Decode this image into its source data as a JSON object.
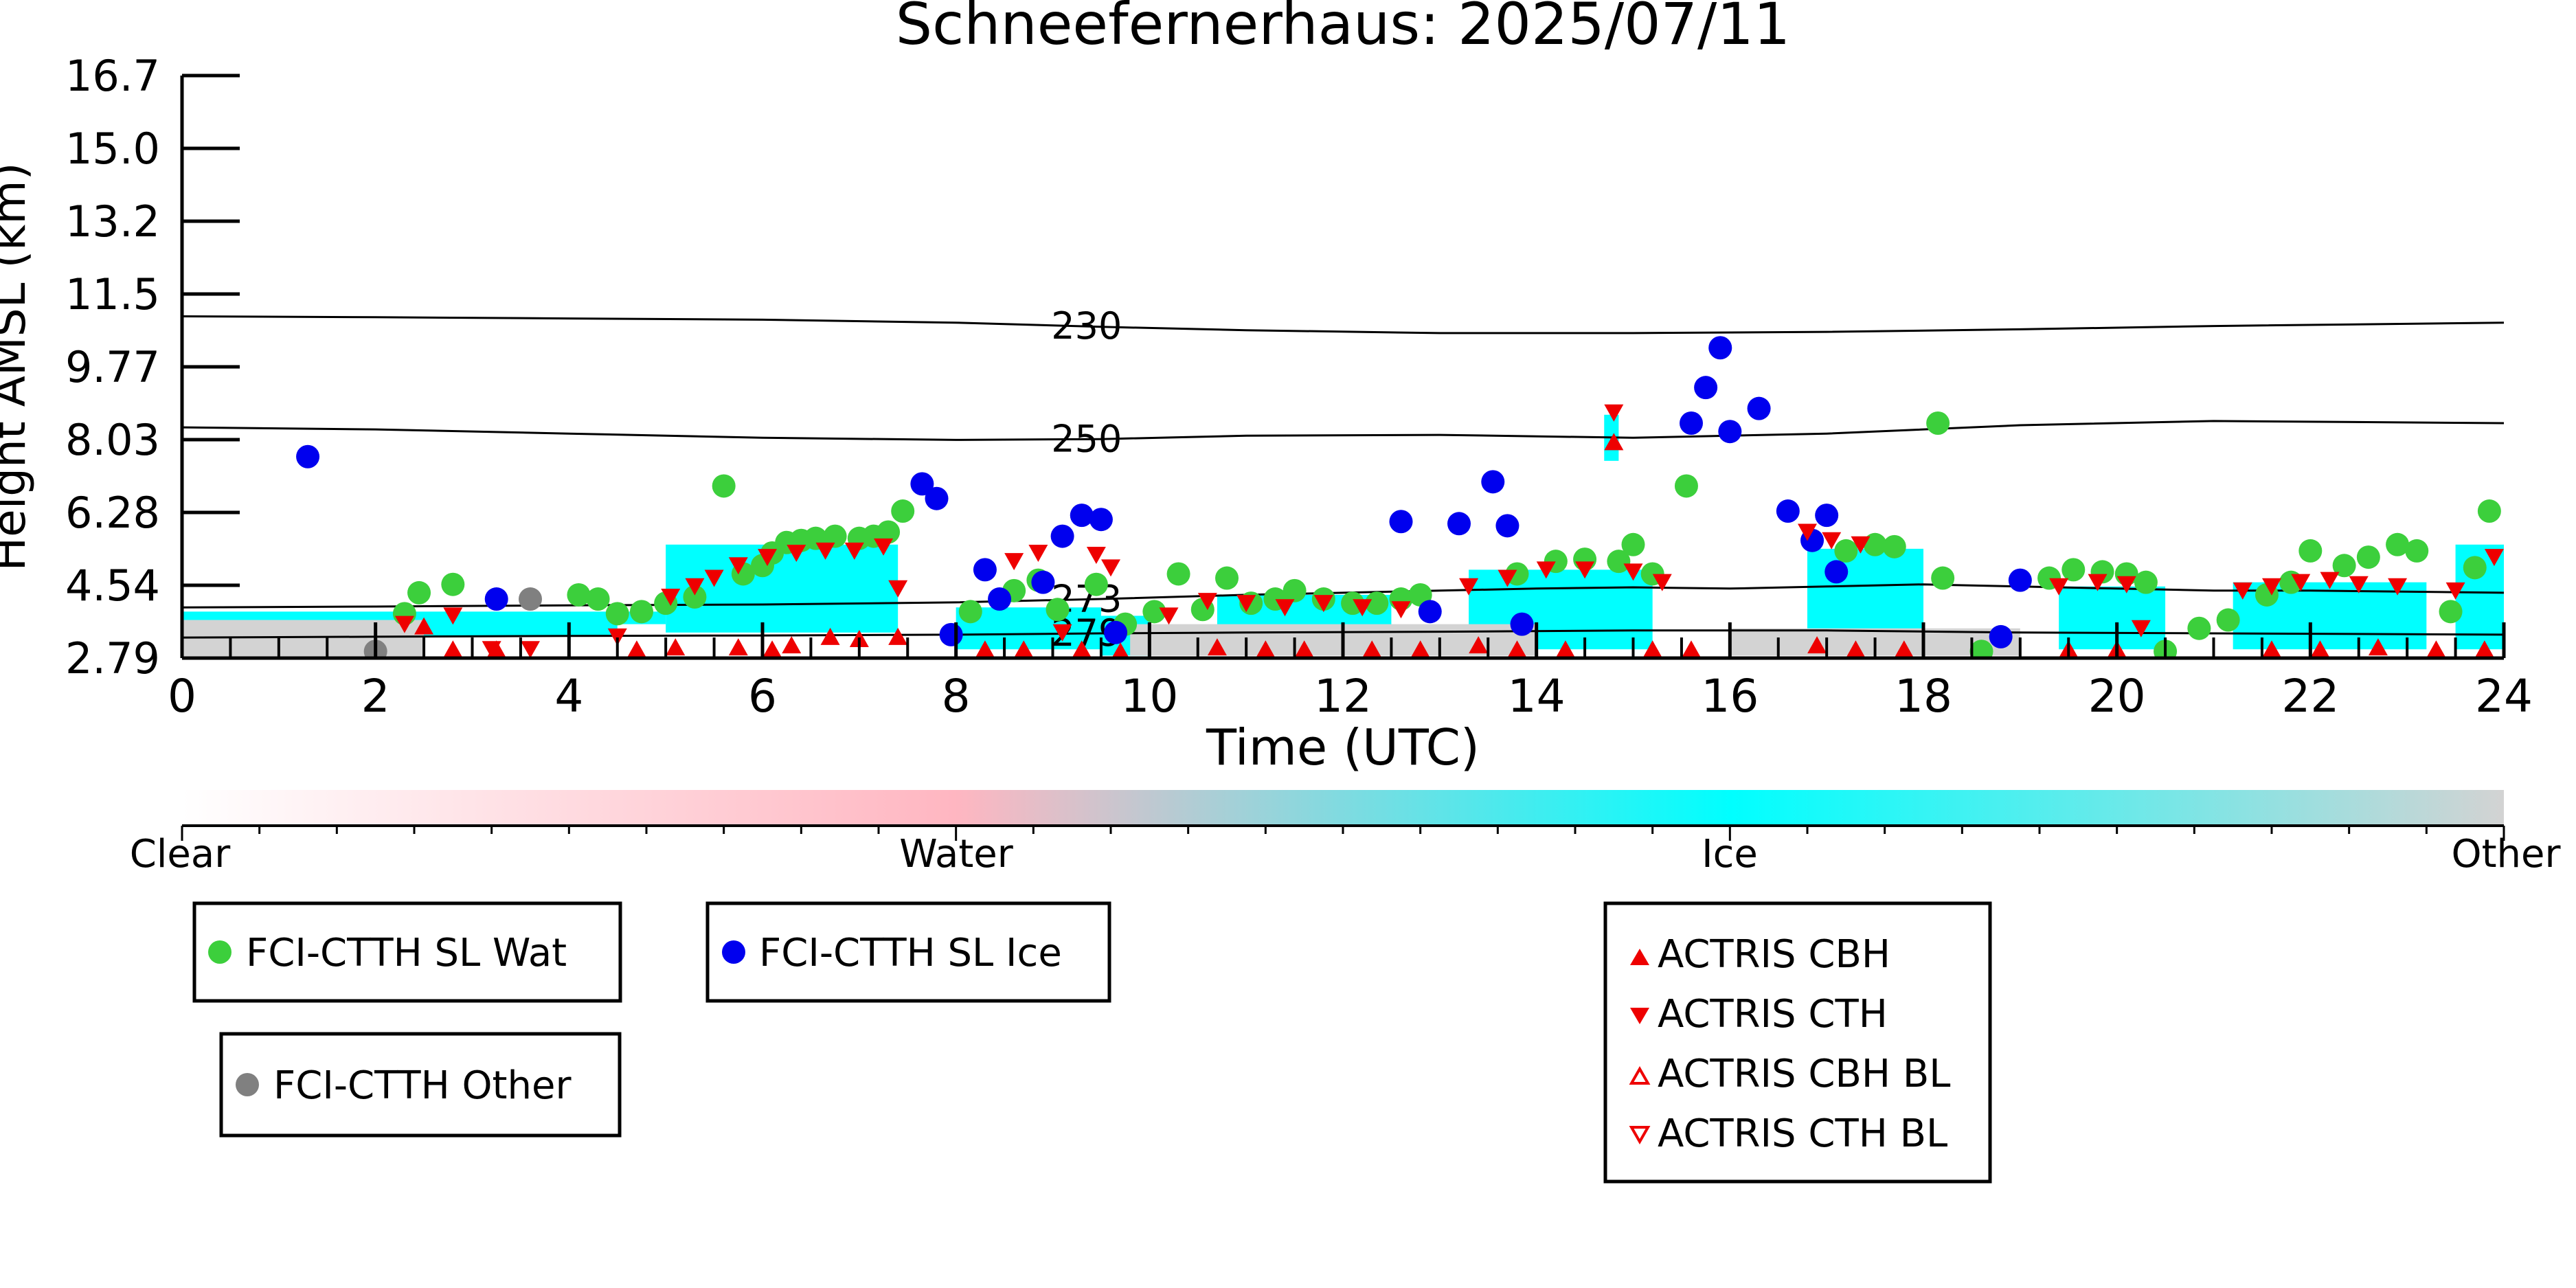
{
  "chart_data": {
    "type": "scatter",
    "title": "Schneefernerhaus: 2025/07/11",
    "xlabel": "Time (UTC)",
    "ylabel": "Height AMSL (km)",
    "xlim": [
      0,
      24
    ],
    "ylim": [
      2.79,
      16.7
    ],
    "x_ticks": [
      0,
      2,
      4,
      6,
      8,
      10,
      12,
      14,
      16,
      18,
      20,
      22,
      24
    ],
    "y_tick_labels": [
      "2.79",
      "4.54",
      "6.28",
      "8.03",
      "9.77",
      "11.5",
      "13.2",
      "15.0",
      "16.7"
    ],
    "colorbar": {
      "labels": [
        "Clear",
        "Water",
        "Ice",
        "Other"
      ],
      "colors": [
        "#ffffff",
        "#ffb6c1",
        "#00ffff",
        "#d3d3d3"
      ]
    },
    "contours": [
      {
        "label": "230",
        "x": [
          0,
          2,
          4,
          6,
          8,
          9.5,
          11,
          13,
          15,
          17,
          19,
          21,
          24
        ],
        "y": [
          10.95,
          10.93,
          10.9,
          10.87,
          10.8,
          10.7,
          10.62,
          10.55,
          10.55,
          10.58,
          10.64,
          10.72,
          10.8
        ]
      },
      {
        "label": "250",
        "x": [
          0,
          2,
          4,
          6,
          8,
          9.5,
          11,
          13,
          15,
          17,
          19,
          21,
          24
        ],
        "y": [
          8.3,
          8.25,
          8.15,
          8.05,
          8.0,
          8.02,
          8.1,
          8.12,
          8.05,
          8.15,
          8.35,
          8.45,
          8.4
        ]
      },
      {
        "label": "273",
        "x": [
          0,
          2,
          4,
          6,
          8,
          9.5,
          11,
          12,
          13,
          14,
          15,
          16,
          17,
          18,
          19,
          20,
          21,
          22,
          24
        ],
        "y": [
          4.0,
          4.02,
          4.05,
          4.07,
          4.12,
          4.2,
          4.3,
          4.35,
          4.4,
          4.45,
          4.48,
          4.45,
          4.5,
          4.55,
          4.5,
          4.45,
          4.4,
          4.4,
          4.35
        ]
      },
      {
        "label": "279",
        "x": [
          0,
          2,
          4,
          6,
          8,
          9.5,
          11,
          13,
          15,
          17,
          19,
          21,
          24
        ],
        "y": [
          3.28,
          3.3,
          3.32,
          3.33,
          3.35,
          3.38,
          3.4,
          3.42,
          3.45,
          3.45,
          3.4,
          3.38,
          3.35
        ]
      }
    ],
    "cloud_regions": [
      {
        "category": "Ice",
        "x0": 0.0,
        "x1": 5.0,
        "y0": 3.6,
        "y1": 3.9
      },
      {
        "category": "Ice",
        "x0": 2.3,
        "x1": 4.5,
        "y0": 3.3,
        "y1": 3.7
      },
      {
        "category": "Ice",
        "x0": 5.0,
        "x1": 7.4,
        "y0": 3.4,
        "y1": 5.5
      },
      {
        "category": "Ice",
        "x0": 8.0,
        "x1": 9.5,
        "y0": 3.0,
        "y1": 4.0
      },
      {
        "category": "Ice",
        "x0": 9.5,
        "x1": 10.0,
        "y0": 2.85,
        "y1": 3.8
      },
      {
        "category": "Ice",
        "x0": 10.7,
        "x1": 12.5,
        "y0": 3.0,
        "y1": 4.3
      },
      {
        "category": "Ice",
        "x0": 13.3,
        "x1": 15.2,
        "y0": 3.0,
        "y1": 4.9
      },
      {
        "category": "Ice",
        "x0": 16.8,
        "x1": 18.0,
        "y0": 3.0,
        "y1": 5.4
      },
      {
        "category": "Ice",
        "x0": 19.4,
        "x1": 20.5,
        "y0": 3.0,
        "y1": 4.5
      },
      {
        "category": "Ice",
        "x0": 21.2,
        "x1": 23.2,
        "y0": 3.0,
        "y1": 4.6
      },
      {
        "category": "Ice",
        "x0": 23.5,
        "x1": 24.0,
        "y0": 3.0,
        "y1": 5.5
      },
      {
        "category": "Ice",
        "x0": 14.7,
        "x1": 14.85,
        "y0": 7.5,
        "y1": 8.6
      },
      {
        "category": "Other",
        "x0": 0.0,
        "x1": 2.5,
        "y0": 2.79,
        "y1": 3.7
      },
      {
        "category": "Other",
        "x0": 9.8,
        "x1": 14.0,
        "y0": 2.85,
        "y1": 3.6
      },
      {
        "category": "Other",
        "x0": 16.0,
        "x1": 19.0,
        "y0": 2.85,
        "y1": 3.5
      }
    ],
    "series": [
      {
        "name": "FCI-CTTH SL Wat",
        "marker": "circle",
        "color": "#3ccf3c",
        "points": [
          [
            2.3,
            3.85
          ],
          [
            2.45,
            4.35
          ],
          [
            2.8,
            4.55
          ],
          [
            4.1,
            4.3
          ],
          [
            4.3,
            4.2
          ],
          [
            4.5,
            3.85
          ],
          [
            4.75,
            3.9
          ],
          [
            5.0,
            4.1
          ],
          [
            5.3,
            4.25
          ],
          [
            5.6,
            6.9
          ],
          [
            5.8,
            4.8
          ],
          [
            6.0,
            5.0
          ],
          [
            6.1,
            5.3
          ],
          [
            6.25,
            5.55
          ],
          [
            6.4,
            5.6
          ],
          [
            6.55,
            5.65
          ],
          [
            6.75,
            5.7
          ],
          [
            7.0,
            5.65
          ],
          [
            7.15,
            5.7
          ],
          [
            7.3,
            5.8
          ],
          [
            7.45,
            6.3
          ],
          [
            8.15,
            3.9
          ],
          [
            8.6,
            4.4
          ],
          [
            8.85,
            4.65
          ],
          [
            9.05,
            3.95
          ],
          [
            9.45,
            4.55
          ],
          [
            9.75,
            3.6
          ],
          [
            10.05,
            3.9
          ],
          [
            10.3,
            4.8
          ],
          [
            10.55,
            3.95
          ],
          [
            10.8,
            4.7
          ],
          [
            11.05,
            4.1
          ],
          [
            11.3,
            4.2
          ],
          [
            11.5,
            4.4
          ],
          [
            11.8,
            4.2
          ],
          [
            12.1,
            4.1
          ],
          [
            12.35,
            4.1
          ],
          [
            12.6,
            4.2
          ],
          [
            12.8,
            4.3
          ],
          [
            13.8,
            4.8
          ],
          [
            14.2,
            5.1
          ],
          [
            14.5,
            5.15
          ],
          [
            14.85,
            5.1
          ],
          [
            15.0,
            5.5
          ],
          [
            15.2,
            4.8
          ],
          [
            15.55,
            6.9
          ],
          [
            17.2,
            5.35
          ],
          [
            17.5,
            5.5
          ],
          [
            17.7,
            5.45
          ],
          [
            18.15,
            8.4
          ],
          [
            18.2,
            4.7
          ],
          [
            19.3,
            4.7
          ],
          [
            19.55,
            4.9
          ],
          [
            19.85,
            4.85
          ],
          [
            20.1,
            4.8
          ],
          [
            20.3,
            4.6
          ],
          [
            20.85,
            3.5
          ],
          [
            21.15,
            3.7
          ],
          [
            21.55,
            4.3
          ],
          [
            21.8,
            4.6
          ],
          [
            22.0,
            5.35
          ],
          [
            22.35,
            5.0
          ],
          [
            22.6,
            5.2
          ],
          [
            22.9,
            5.5
          ],
          [
            23.1,
            5.35
          ],
          [
            23.45,
            3.9
          ],
          [
            23.7,
            4.95
          ],
          [
            23.85,
            6.3
          ],
          [
            20.5,
            2.95
          ],
          [
            18.6,
            2.95
          ]
        ]
      },
      {
        "name": "FCI-CTTH SL Ice",
        "marker": "circle",
        "color": "#0000ee",
        "points": [
          [
            1.3,
            7.6
          ],
          [
            3.25,
            4.2
          ],
          [
            7.65,
            6.95
          ],
          [
            7.8,
            6.6
          ],
          [
            7.95,
            3.35
          ],
          [
            8.3,
            4.9
          ],
          [
            8.45,
            4.2
          ],
          [
            8.9,
            4.6
          ],
          [
            9.1,
            5.7
          ],
          [
            9.3,
            6.2
          ],
          [
            9.5,
            6.1
          ],
          [
            9.65,
            3.4
          ],
          [
            12.6,
            6.05
          ],
          [
            12.9,
            3.9
          ],
          [
            13.2,
            6.0
          ],
          [
            13.55,
            7.0
          ],
          [
            13.7,
            5.95
          ],
          [
            13.85,
            3.6
          ],
          [
            15.6,
            8.4
          ],
          [
            15.75,
            9.25
          ],
          [
            15.9,
            10.2
          ],
          [
            16.0,
            8.2
          ],
          [
            16.3,
            8.75
          ],
          [
            16.6,
            6.3
          ],
          [
            16.85,
            5.6
          ],
          [
            17.0,
            6.2
          ],
          [
            17.1,
            4.85
          ],
          [
            18.8,
            3.3
          ],
          [
            19.0,
            4.65
          ]
        ]
      },
      {
        "name": "FCI-CTTH Other",
        "marker": "circle",
        "color": "#808080",
        "points": [
          [
            2.0,
            2.95
          ],
          [
            3.6,
            4.2
          ]
        ]
      },
      {
        "name": "ACTRIS CBH",
        "marker": "triangle-up",
        "color": "#ee0000",
        "points": [
          [
            2.5,
            3.55
          ],
          [
            2.8,
            3.0
          ],
          [
            3.25,
            3.0
          ],
          [
            4.7,
            3.0
          ],
          [
            5.1,
            3.05
          ],
          [
            5.75,
            3.05
          ],
          [
            6.1,
            3.0
          ],
          [
            6.3,
            3.1
          ],
          [
            6.7,
            3.3
          ],
          [
            7.0,
            3.25
          ],
          [
            7.4,
            3.3
          ],
          [
            8.3,
            3.0
          ],
          [
            8.7,
            3.0
          ],
          [
            9.3,
            3.0
          ],
          [
            9.7,
            2.95
          ],
          [
            10.7,
            3.05
          ],
          [
            11.2,
            3.0
          ],
          [
            11.6,
            3.0
          ],
          [
            12.3,
            3.0
          ],
          [
            12.8,
            3.0
          ],
          [
            13.4,
            3.1
          ],
          [
            13.8,
            3.0
          ],
          [
            14.3,
            3.0
          ],
          [
            14.8,
            7.95
          ],
          [
            15.2,
            3.0
          ],
          [
            15.6,
            3.0
          ],
          [
            16.9,
            3.1
          ],
          [
            17.3,
            3.0
          ],
          [
            17.8,
            3.0
          ],
          [
            19.5,
            3.0
          ],
          [
            20.0,
            3.0
          ],
          [
            21.6,
            3.0
          ],
          [
            22.1,
            3.0
          ],
          [
            22.7,
            3.05
          ],
          [
            23.3,
            3.0
          ],
          [
            23.8,
            3.0
          ]
        ]
      },
      {
        "name": "ACTRIS CTH",
        "marker": "triangle-down",
        "color": "#ee0000",
        "points": [
          [
            2.3,
            3.6
          ],
          [
            2.8,
            3.8
          ],
          [
            3.2,
            3.0
          ],
          [
            3.6,
            3.0
          ],
          [
            4.5,
            3.3
          ],
          [
            5.05,
            4.25
          ],
          [
            5.3,
            4.5
          ],
          [
            5.5,
            4.7
          ],
          [
            5.75,
            5.0
          ],
          [
            6.05,
            5.2
          ],
          [
            6.35,
            5.3
          ],
          [
            6.65,
            5.35
          ],
          [
            6.95,
            5.35
          ],
          [
            7.25,
            5.45
          ],
          [
            7.4,
            4.45
          ],
          [
            8.6,
            5.1
          ],
          [
            8.85,
            5.3
          ],
          [
            9.1,
            3.4
          ],
          [
            9.45,
            5.25
          ],
          [
            9.6,
            4.95
          ],
          [
            10.2,
            3.8
          ],
          [
            10.6,
            4.15
          ],
          [
            11.0,
            4.1
          ],
          [
            11.4,
            4.0
          ],
          [
            11.8,
            4.1
          ],
          [
            12.2,
            4.0
          ],
          [
            12.6,
            3.95
          ],
          [
            13.3,
            4.5
          ],
          [
            13.7,
            4.7
          ],
          [
            14.1,
            4.9
          ],
          [
            14.5,
            4.9
          ],
          [
            14.8,
            8.65
          ],
          [
            15.0,
            4.85
          ],
          [
            15.3,
            4.6
          ],
          [
            16.8,
            5.8
          ],
          [
            17.05,
            5.6
          ],
          [
            17.35,
            5.5
          ],
          [
            19.4,
            4.5
          ],
          [
            19.8,
            4.6
          ],
          [
            20.1,
            4.55
          ],
          [
            20.25,
            3.5
          ],
          [
            21.3,
            4.4
          ],
          [
            21.6,
            4.5
          ],
          [
            21.9,
            4.6
          ],
          [
            22.2,
            4.65
          ],
          [
            22.5,
            4.55
          ],
          [
            22.9,
            4.5
          ],
          [
            23.5,
            4.4
          ],
          [
            23.9,
            5.2
          ]
        ]
      }
    ],
    "legends": [
      {
        "entries": [
          "FCI-CTTH SL Wat"
        ]
      },
      {
        "entries": [
          "FCI-CTTH SL Ice"
        ]
      },
      {
        "entries": [
          "FCI-CTTH Other"
        ]
      },
      {
        "entries": [
          "ACTRIS CBH",
          "ACTRIS CTH",
          "ACTRIS CBH BL",
          "ACTRIS CTH BL"
        ]
      }
    ]
  }
}
